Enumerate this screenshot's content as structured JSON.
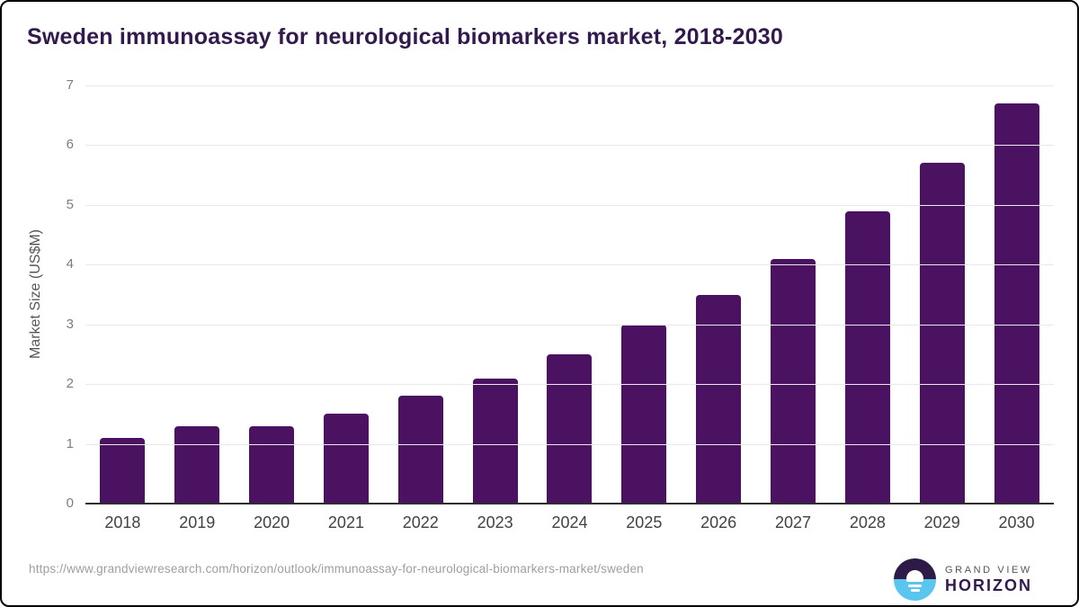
{
  "title": "Sweden immunoassay for neurological biomarkers market, 2018-2030",
  "chart_data": {
    "type": "bar",
    "title": "Sweden immunoassay for neurological biomarkers market, 2018-2030",
    "categories": [
      "2018",
      "2019",
      "2020",
      "2021",
      "2022",
      "2023",
      "2024",
      "2025",
      "2026",
      "2027",
      "2028",
      "2029",
      "2030"
    ],
    "values": [
      1.1,
      1.3,
      1.3,
      1.5,
      1.8,
      2.1,
      2.5,
      3.0,
      3.5,
      4.1,
      4.9,
      5.7,
      6.7
    ],
    "xlabel": "",
    "ylabel": "Market Size (US$M)",
    "ylim": [
      0,
      7
    ],
    "yticks": [
      0,
      1,
      2,
      3,
      4,
      5,
      6,
      7
    ],
    "grid": true,
    "legend": false,
    "bar_color": "#4a1261"
  },
  "colors": {
    "title": "#321a4e",
    "bar": "#4a1261",
    "gridline": "#e9e9e9",
    "axis_line": "#2e2e2e",
    "logo_blue": "#5ac6f0",
    "logo_dark": "#2e1a47"
  },
  "footer": {
    "source_url": "https://www.grandviewresearch.com/horizon/outlook/immunoassay-for-neurological-biomarkers-market/sweden",
    "logo": {
      "line1": "GRAND VIEW",
      "line2": "HORIZON"
    }
  }
}
